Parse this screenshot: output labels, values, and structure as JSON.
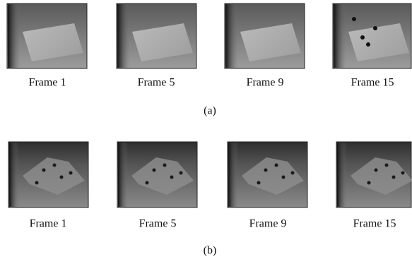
{
  "rows": [
    {
      "frames": [
        "Frame 1",
        "Frame 5",
        "Frame 9",
        "Frame 15"
      ],
      "label": "(a)"
    },
    {
      "frames": [
        "Frame 1",
        "Frame 5",
        "Frame 9",
        "Frame 15"
      ],
      "label": "(b)"
    }
  ]
}
